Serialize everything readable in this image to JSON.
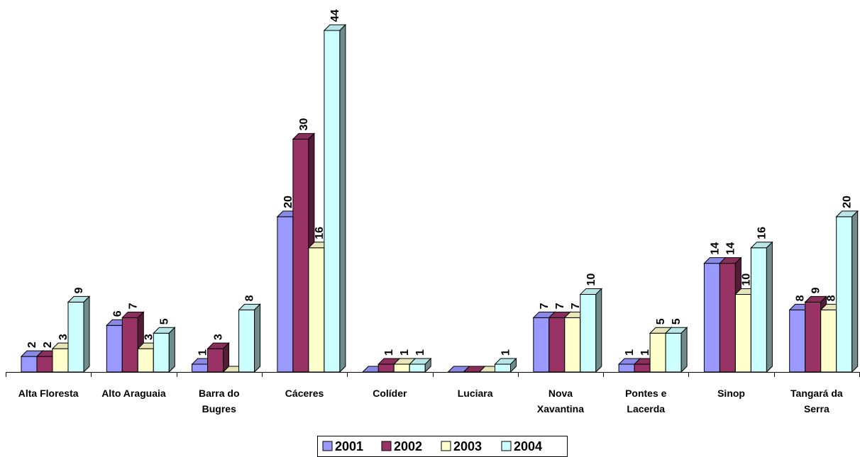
{
  "chart_data": {
    "type": "bar",
    "style": "3d-clustered-column",
    "categories": [
      [
        "Alta Floresta"
      ],
      [
        "Alto Araguaia"
      ],
      [
        "Barra do",
        "Bugres"
      ],
      [
        "Cáceres"
      ],
      [
        "Colíder"
      ],
      [
        "Luciara"
      ],
      [
        "Nova",
        "Xavantina"
      ],
      [
        "Pontes e",
        "Lacerda"
      ],
      [
        "Sinop"
      ],
      [
        "Tangará da",
        "Serra"
      ]
    ],
    "series": [
      {
        "name": "2001",
        "color": "#9999FF",
        "values": [
          2,
          6,
          1,
          20,
          0,
          0,
          7,
          1,
          14,
          8
        ],
        "labels": [
          "2",
          "6",
          "1",
          "20",
          "",
          "",
          "7",
          "1",
          "14",
          "8"
        ]
      },
      {
        "name": "2002",
        "color": "#993366",
        "values": [
          2,
          7,
          3,
          30,
          1,
          0,
          7,
          1,
          14,
          9
        ],
        "labels": [
          "2",
          "7",
          "3",
          "30",
          "1",
          "",
          "7",
          "1",
          "14",
          "9"
        ]
      },
      {
        "name": "2003",
        "color": "#FFFFCC",
        "values": [
          3,
          3,
          0,
          16,
          1,
          0,
          7,
          5,
          10,
          8
        ],
        "labels": [
          "3",
          "3",
          "",
          "16",
          "1",
          "",
          "7",
          "5",
          "10",
          "8"
        ]
      },
      {
        "name": "2004",
        "color": "#CCFFFF",
        "values": [
          9,
          5,
          8,
          44,
          1,
          1,
          10,
          5,
          16,
          20
        ],
        "labels": [
          "9",
          "5",
          "8",
          "44",
          "1",
          "1",
          "10",
          "5",
          "16",
          "20"
        ]
      }
    ],
    "ylim": [
      0,
      44
    ],
    "grid": false,
    "legend_position": "bottom"
  }
}
